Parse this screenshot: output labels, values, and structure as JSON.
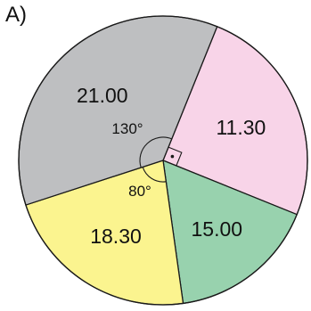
{
  "panel_label": "A)",
  "chart_data": {
    "type": "pie",
    "slices": [
      {
        "label": "11.30",
        "angle_deg": 90,
        "color": "#f8d4e8"
      },
      {
        "label": "15.00",
        "angle_deg": 60,
        "color": "#98d2ae"
      },
      {
        "label": "18.30",
        "angle_deg": 80,
        "color": "#fbf48f"
      },
      {
        "label": "21.00",
        "angle_deg": 130,
        "color": "#bebfc1"
      }
    ],
    "annotations": {
      "angle_labels": [
        "130°",
        "80°"
      ],
      "right_angle_marker": true
    },
    "stroke_color": "#1a1a1a"
  }
}
